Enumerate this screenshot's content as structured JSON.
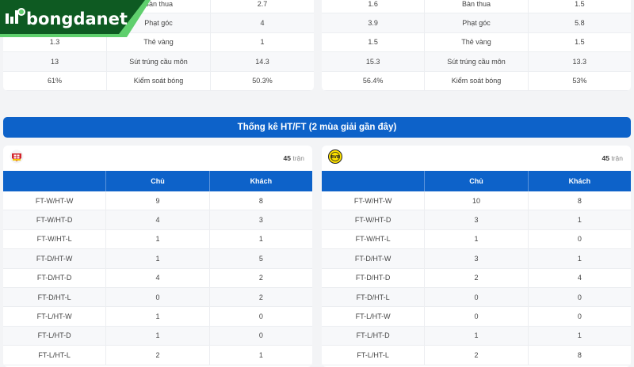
{
  "brand": {
    "name": "bongdanet",
    "colors": {
      "dark_green": "#0e5a22",
      "light_green": "#5fcf6d"
    }
  },
  "top_stats": {
    "left": [
      [
        "",
        "Bàn thua",
        "2.7"
      ],
      [
        "",
        "Phạt góc",
        "4"
      ],
      [
        "1.3",
        "Thẻ vàng",
        "1"
      ],
      [
        "13",
        "Sút trúng cầu môn",
        "14.3"
      ],
      [
        "61%",
        "Kiểm soát bóng",
        "50.3%"
      ]
    ],
    "right": [
      [
        "1.6",
        "Bàn thua",
        "1.5"
      ],
      [
        "3.9",
        "Phạt góc",
        "5.8"
      ],
      [
        "1.5",
        "Thẻ vàng",
        "1.5"
      ],
      [
        "15.3",
        "Sút trúng cầu môn",
        "13.3"
      ],
      [
        "56.4%",
        "Kiểm soát bóng",
        "53%"
      ]
    ]
  },
  "htft": {
    "title": "Thống kê HT/FT (2 mùa giải gần đây)",
    "columns": [
      "",
      "Chủ",
      "Khách"
    ],
    "teams": [
      {
        "crest": "leverkusen-crest-icon",
        "count": "45",
        "count_unit": "trận",
        "rows": [
          [
            "FT-W/HT-W",
            "9",
            "8"
          ],
          [
            "FT-W/HT-D",
            "4",
            "3"
          ],
          [
            "FT-W/HT-L",
            "1",
            "1"
          ],
          [
            "FT-D/HT-W",
            "1",
            "5"
          ],
          [
            "FT-D/HT-D",
            "4",
            "2"
          ],
          [
            "FT-D/HT-L",
            "0",
            "2"
          ],
          [
            "FT-L/HT-W",
            "1",
            "0"
          ],
          [
            "FT-L/HT-D",
            "1",
            "0"
          ],
          [
            "FT-L/HT-L",
            "2",
            "1"
          ]
        ]
      },
      {
        "crest": "dortmund-crest-icon",
        "count": "45",
        "count_unit": "trận",
        "rows": [
          [
            "FT-W/HT-W",
            "10",
            "8"
          ],
          [
            "FT-W/HT-D",
            "3",
            "1"
          ],
          [
            "FT-W/HT-L",
            "1",
            "0"
          ],
          [
            "FT-D/HT-W",
            "3",
            "1"
          ],
          [
            "FT-D/HT-D",
            "2",
            "4"
          ],
          [
            "FT-D/HT-L",
            "0",
            "0"
          ],
          [
            "FT-L/HT-W",
            "0",
            "0"
          ],
          [
            "FT-L/HT-D",
            "1",
            "1"
          ],
          [
            "FT-L/HT-L",
            "2",
            "8"
          ]
        ]
      }
    ]
  },
  "colors": {
    "primary_blue": "#0d62c9"
  }
}
